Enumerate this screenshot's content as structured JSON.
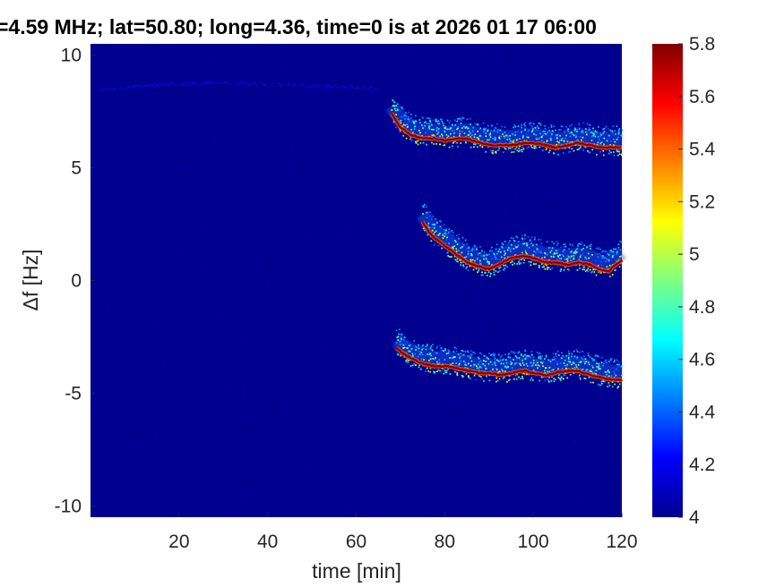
{
  "chart_data": {
    "type": "heatmap",
    "title": "=4.59 MHz;  lat=50.80; long=4.36, time=0 is at 2026 01 17 06:00",
    "xlabel": "time [min]",
    "ylabel": "Δf [Hz]",
    "xlim": [
      0,
      120
    ],
    "ylim": [
      -10.5,
      10.5
    ],
    "x_ticks": [
      20,
      40,
      60,
      80,
      100,
      120
    ],
    "y_ticks": [
      -10,
      -5,
      0,
      5,
      10
    ],
    "colorbar": {
      "colormap": "jet",
      "range": [
        4,
        5.8
      ],
      "ticks": [
        4,
        4.2,
        4.4,
        4.6,
        4.8,
        5,
        5.2,
        5.4,
        5.6,
        5.8
      ]
    },
    "background_value": 4.0,
    "series": [
      {
        "time_min": [
          68,
          70,
          72,
          75,
          78,
          80,
          83,
          85,
          88,
          90,
          93,
          95,
          98,
          100,
          103,
          105,
          108,
          110,
          113,
          115,
          118,
          120
        ],
        "delta_f_hz": [
          7.4,
          6.8,
          6.5,
          6.3,
          6.3,
          6.2,
          6.3,
          6.3,
          6.1,
          6.0,
          6.0,
          6.0,
          6.1,
          6.1,
          6.0,
          5.9,
          6.0,
          6.1,
          6.0,
          5.9,
          5.9,
          5.9
        ],
        "peak_value": 5.8
      },
      {
        "time_min": [
          75,
          77,
          79,
          81,
          83,
          85,
          88,
          90,
          92,
          95,
          98,
          100,
          103,
          105,
          108,
          110,
          113,
          115,
          117,
          118,
          120
        ],
        "delta_f_hz": [
          2.6,
          2.0,
          1.7,
          1.4,
          1.1,
          0.8,
          0.6,
          0.5,
          0.7,
          1.0,
          1.1,
          1.0,
          0.8,
          0.8,
          0.7,
          0.8,
          0.7,
          0.5,
          0.4,
          0.6,
          0.9
        ],
        "peak_value": 5.8
      },
      {
        "time_min": [
          69,
          71,
          73,
          75,
          78,
          80,
          83,
          85,
          88,
          90,
          93,
          95,
          98,
          100,
          103,
          105,
          108,
          110,
          113,
          115,
          118,
          120
        ],
        "delta_f_hz": [
          -3.0,
          -3.3,
          -3.5,
          -3.7,
          -3.8,
          -3.8,
          -3.9,
          -4.0,
          -4.1,
          -4.1,
          -4.2,
          -4.1,
          -4.0,
          -4.1,
          -4.2,
          -4.1,
          -4.0,
          -4.0,
          -4.2,
          -4.3,
          -4.4,
          -4.4
        ],
        "peak_value": 5.8
      },
      {
        "time_min": [
          2,
          15,
          30,
          45,
          60,
          65
        ],
        "delta_f_hz": [
          8.5,
          8.7,
          8.8,
          8.7,
          8.6,
          8.5
        ],
        "peak_value": 4.25
      }
    ]
  }
}
